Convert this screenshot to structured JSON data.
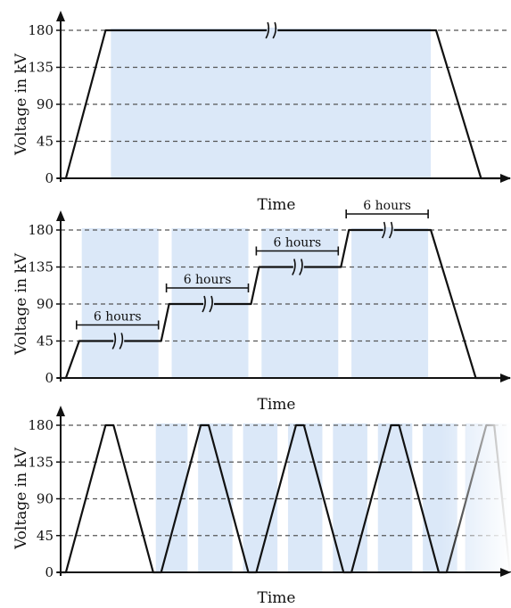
{
  "colors": {
    "shade": "#dbe8f8",
    "line": "#111111",
    "grid": "#555555"
  },
  "chart_data": [
    {
      "type": "line",
      "panel": "constant-voltage",
      "xlabel": "Time",
      "ylabel": "Voltage in kV",
      "yticks": [
        "0",
        "45",
        "90",
        "135",
        "180"
      ],
      "ylim": [
        0,
        180
      ],
      "x_unit": "relative time (no ticks printed)",
      "series": [
        {
          "x": [
            0,
            1.0,
            8.5,
            71.0,
            79.5,
            85.0
          ],
          "y": [
            0,
            0,
            180,
            180,
            0,
            0
          ]
        }
      ],
      "shaded_intervals": [
        [
          9.5,
          70.0
        ]
      ],
      "axis_breaks": [
        {
          "x": 40,
          "y": 180
        }
      ],
      "annotations": []
    },
    {
      "type": "line",
      "panel": "stepwise-voltage",
      "xlabel": "Time",
      "ylabel": "Voltage in kV",
      "yticks": [
        "0",
        "45",
        "90",
        "135",
        "180"
      ],
      "ylim": [
        0,
        180
      ],
      "x_unit": "relative time (no ticks printed)",
      "series": [
        {
          "x": [
            0,
            1.0,
            3.5,
            19.0,
            20.5,
            36.0,
            37.5,
            53.0,
            54.5,
            70.0,
            78.5,
            85.0
          ],
          "y": [
            0,
            0,
            45,
            45,
            90,
            90,
            135,
            135,
            180,
            180,
            0,
            0
          ]
        }
      ],
      "shaded_intervals": [
        [
          4.0,
          18.5
        ],
        [
          21.0,
          35.5
        ],
        [
          38.0,
          52.5
        ],
        [
          55.0,
          69.5
        ]
      ],
      "axis_breaks": [
        {
          "x": 11,
          "y": 45
        },
        {
          "x": 28,
          "y": 90
        },
        {
          "x": 45,
          "y": 135
        },
        {
          "x": 62,
          "y": 180
        }
      ],
      "annotations": [
        {
          "text": "6 hours",
          "x0": 3.0,
          "x1": 18.5,
          "y": 45
        },
        {
          "text": "6 hours",
          "x0": 20.0,
          "x1": 35.5,
          "y": 90
        },
        {
          "text": "6 hours",
          "x0": 37.0,
          "x1": 52.5,
          "y": 135
        },
        {
          "text": "6 hours",
          "x0": 54.0,
          "x1": 69.5,
          "y": 180
        }
      ]
    },
    {
      "type": "line",
      "panel": "cyclic-voltage",
      "xlabel": "Time",
      "ylabel": "Voltage in kV",
      "yticks": [
        "0",
        "45",
        "90",
        "135",
        "180"
      ],
      "ylim": [
        0,
        180
      ],
      "x_unit": "relative time (no ticks printed)",
      "series": [
        {
          "x": [
            0,
            1.0,
            8.5,
            10.0,
            17.5,
            19.0,
            26.5,
            28.0,
            35.5,
            37.0,
            44.5,
            46.0,
            53.5,
            55.0,
            62.5,
            64.0,
            71.5,
            73.0,
            80.5,
            82.0,
            85.0
          ],
          "y": [
            0,
            0,
            180,
            180,
            0,
            0,
            180,
            180,
            0,
            0,
            180,
            180,
            0,
            0,
            180,
            180,
            0,
            0,
            180,
            180,
            0
          ]
        }
      ],
      "shaded_intervals": [
        [
          18.0,
          24.0
        ],
        [
          26.0,
          32.5
        ],
        [
          34.5,
          41.0
        ],
        [
          43.0,
          49.5
        ],
        [
          51.5,
          58.0
        ],
        [
          60.0,
          66.5
        ],
        [
          68.5,
          75.0
        ],
        [
          76.5,
          85.0
        ]
      ],
      "fade_out_from_x": 72,
      "axis_breaks": [],
      "annotations": []
    }
  ]
}
